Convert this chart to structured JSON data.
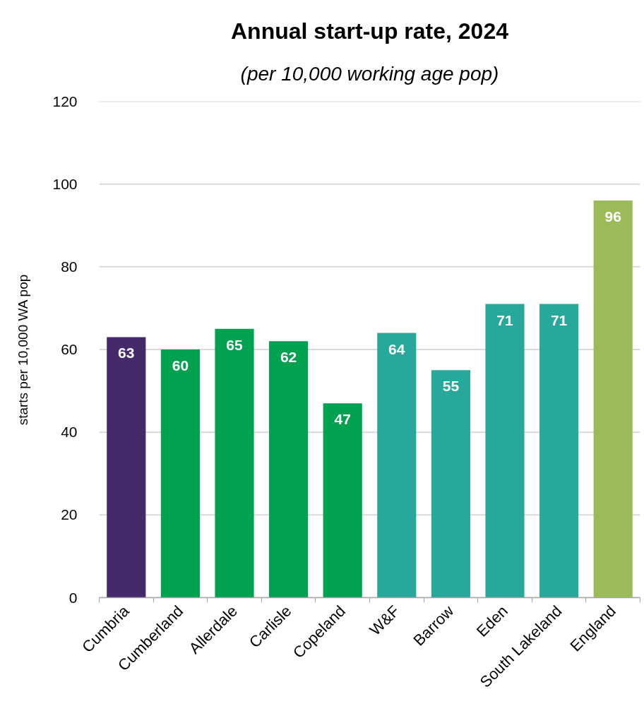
{
  "chart_data": {
    "type": "bar",
    "title": "Annual start-up rate, 2024",
    "subtitle": "(per 10,000 working age pop)",
    "ylabel": "starts per 10,000 WA pop",
    "categories": [
      "Cumbria",
      "Cumberland",
      "Allerdale",
      "Carlisle",
      "Copeland",
      "W&F",
      "Barrow",
      "Eden",
      "South Lakeland",
      "England"
    ],
    "values": [
      63,
      60,
      65,
      62,
      47,
      64,
      55,
      71,
      71,
      96
    ],
    "colors": [
      "#44296b",
      "#00a14f",
      "#00a14f",
      "#00a14f",
      "#00a14f",
      "#27a89a",
      "#27a89a",
      "#27a89a",
      "#27a89a",
      "#9bbb59"
    ],
    "ylim": [
      0,
      120
    ],
    "yticks": [
      0,
      20,
      40,
      60,
      80,
      100,
      120
    ],
    "grid": "y",
    "data_labels": true
  }
}
